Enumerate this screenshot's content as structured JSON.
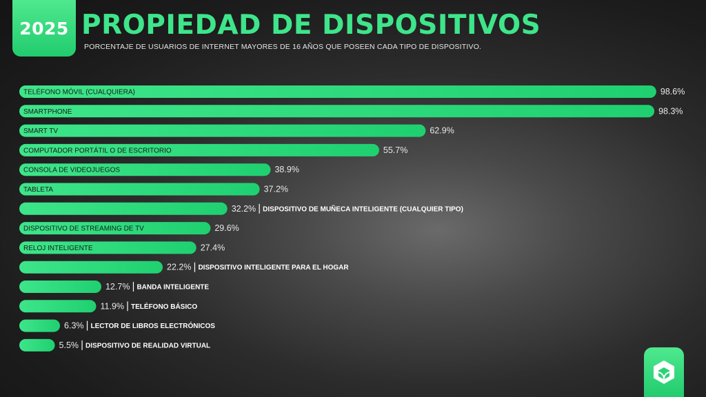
{
  "badge": {
    "year": "2025"
  },
  "header": {
    "title": "PROPIEDAD DE DISPOSITIVOS",
    "subtitle": "PORCENTAJE DE USUARIOS DE INTERNET MAYORES DE 16 AÑOS QUE POSEEN CADA TIPO DE DISPOSITIVO."
  },
  "colors": {
    "accent": "#3ee58a",
    "bar_start": "#3ee58a",
    "bar_end": "#1fd070",
    "value_text": "#e8e8e8",
    "inside_label": "#1a1a1a",
    "outside_label": "#ffffff"
  },
  "logo": {
    "icon": "app-logo-icon"
  },
  "chart_data": {
    "type": "bar",
    "orientation": "horizontal",
    "title": "PROPIEDAD DE DISPOSITIVOS",
    "unit": "%",
    "xlim": [
      0,
      100
    ],
    "grid": false,
    "legend": "none",
    "categories": [
      "TELÉFONO MÓVIL (CUALQUIERA)",
      "SMARTPHONE",
      "SMART TV",
      "COMPUTADOR PORTÁTIL O DE ESCRITORIO",
      "CONSOLA DE VIDEOJUEGOS",
      "TABLETA",
      "DISPOSITIVO DE MUÑECA INTELIGENTE (CUALQUIER TIPO)",
      "DISPOSITIVO DE STREAMING DE TV",
      "RELOJ INTELIGENTE",
      "DISPOSITIVO INTELIGENTE PARA EL HOGAR",
      "BANDA INTELIGENTE",
      "TELÉFONO BÁSICO",
      "LECTOR DE LIBROS ELECTRÓNICOS",
      "DISPOSITIVO DE REALIDAD VIRTUAL"
    ],
    "values": [
      98.6,
      98.3,
      62.9,
      55.7,
      38.9,
      37.2,
      32.2,
      29.6,
      27.4,
      22.2,
      12.7,
      11.9,
      6.3,
      5.5
    ],
    "value_labels": [
      "98.6%",
      "98.3%",
      "62.9%",
      "55.7%",
      "38.9%",
      "37.2%",
      "32.2%",
      "29.6%",
      "27.4%",
      "22.2%",
      "12.7%",
      "11.9%",
      "6.3%",
      "5.5%"
    ],
    "label_position": [
      "inside",
      "inside",
      "inside",
      "inside",
      "inside",
      "inside",
      "outside",
      "inside",
      "inside",
      "outside",
      "outside",
      "outside",
      "outside",
      "outside"
    ]
  }
}
